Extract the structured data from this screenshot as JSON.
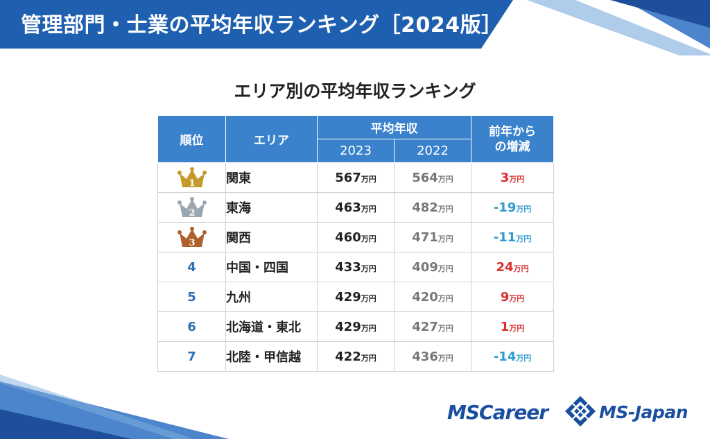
{
  "header": {
    "title": "管理部門・士業の平均年収ランキング［2024版］"
  },
  "section_title": "エリア別の平均年収ランキング",
  "table": {
    "headers": {
      "rank": "順位",
      "area": "エリア",
      "avg_income": "平均年収",
      "year_2023": "2023",
      "year_2022": "2022",
      "diff": "前年からの増減"
    },
    "unit": "万円",
    "rows": [
      {
        "rank": "1",
        "crown": "gold-crown-icon",
        "area": "関東",
        "v2023": "567",
        "v2022": "564",
        "diff": "3",
        "sign": "pos"
      },
      {
        "rank": "2",
        "crown": "silver-crown-icon",
        "area": "東海",
        "v2023": "463",
        "v2022": "482",
        "diff": "-19",
        "sign": "neg"
      },
      {
        "rank": "3",
        "crown": "bronze-crown-icon",
        "area": "関西",
        "v2023": "460",
        "v2022": "471",
        "diff": "-11",
        "sign": "neg"
      },
      {
        "rank": "4",
        "area": "中国・四国",
        "v2023": "433",
        "v2022": "409",
        "diff": "24",
        "sign": "pos"
      },
      {
        "rank": "5",
        "area": "九州",
        "v2023": "429",
        "v2022": "420",
        "diff": "9",
        "sign": "pos"
      },
      {
        "rank": "6",
        "area": "北海道・東北",
        "v2023": "429",
        "v2022": "427",
        "diff": "1",
        "sign": "pos"
      },
      {
        "rank": "7",
        "area": "北陸・甲信越",
        "v2023": "422",
        "v2022": "436",
        "diff": "-14",
        "sign": "neg"
      }
    ]
  },
  "logos": {
    "mscareer": "MSCareer",
    "msjapan": "MS-Japan"
  },
  "colors": {
    "brand_blue": "#1f5fb0",
    "header_blue": "#3a82cc",
    "gold": "#c49a2c",
    "silver": "#9aa7b3",
    "bronze": "#b0602a",
    "positive": "#d9302f",
    "negative": "#2e9ad0"
  }
}
